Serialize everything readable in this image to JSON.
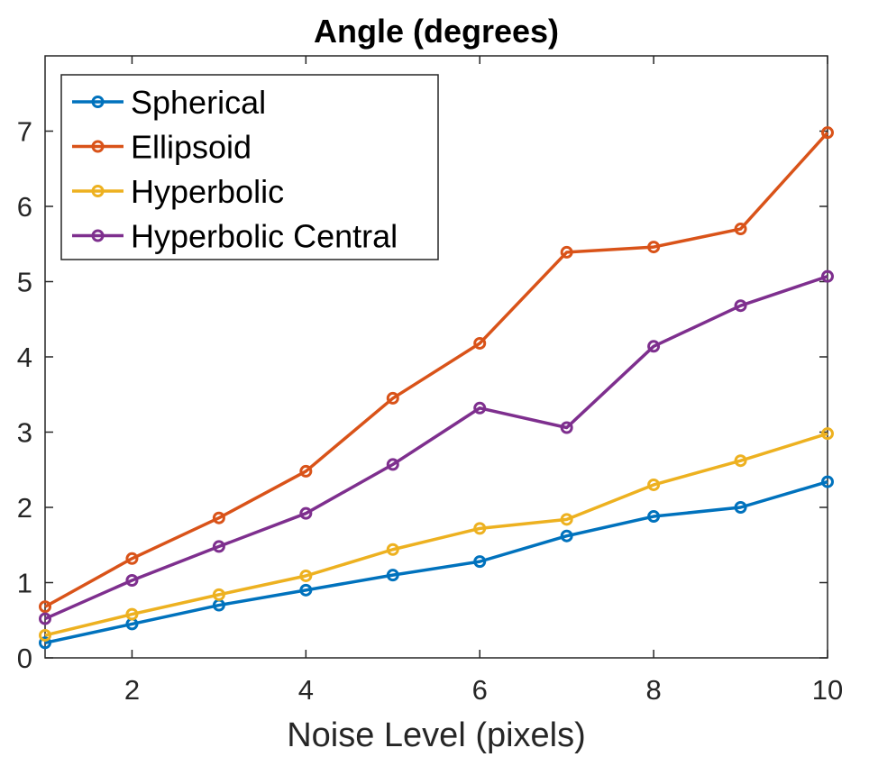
{
  "chart_data": {
    "type": "line",
    "title": "Angle (degrees)",
    "xlabel": "Noise Level (pixels)",
    "ylabel": "",
    "xlim": [
      1,
      10
    ],
    "ylim": [
      0,
      8
    ],
    "xticks": [
      2,
      4,
      6,
      8,
      10
    ],
    "yticks": [
      0,
      1,
      2,
      3,
      4,
      5,
      6,
      7
    ],
    "grid": false,
    "legend_position": "top-left",
    "x": [
      1,
      2,
      3,
      4,
      5,
      6,
      7,
      8,
      9,
      10
    ],
    "series": [
      {
        "name": "Spherical",
        "color": "#0072BD",
        "values": [
          0.2,
          0.45,
          0.7,
          0.9,
          1.1,
          1.28,
          1.62,
          1.88,
          2.0,
          2.34
        ]
      },
      {
        "name": "Ellipsoid",
        "color": "#D95319",
        "values": [
          0.68,
          1.32,
          1.86,
          2.48,
          3.45,
          4.18,
          5.39,
          5.46,
          5.7,
          6.98
        ]
      },
      {
        "name": "Hyperbolic",
        "color": "#EDB120",
        "values": [
          0.3,
          0.58,
          0.84,
          1.09,
          1.44,
          1.72,
          1.84,
          2.3,
          2.62,
          2.98
        ]
      },
      {
        "name": "Hyperbolic Central",
        "color": "#7E2F8E",
        "values": [
          0.52,
          1.03,
          1.48,
          1.92,
          2.57,
          3.32,
          3.06,
          4.14,
          4.68,
          5.07
        ]
      }
    ]
  }
}
